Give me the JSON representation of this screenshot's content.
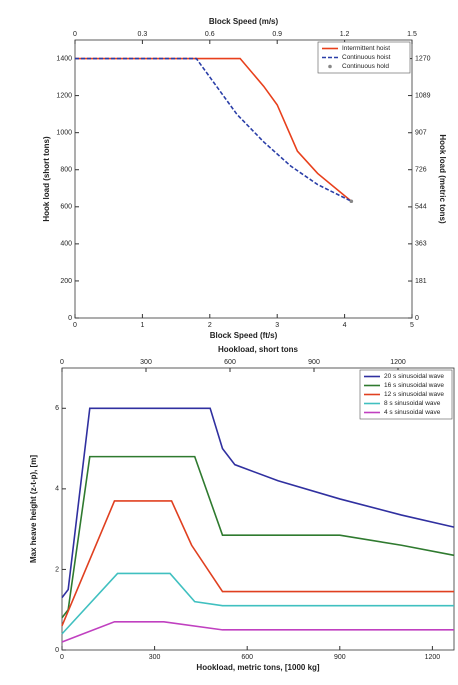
{
  "chart_data": [
    {
      "type": "line",
      "xlabel": "Block Speed (ft/s)",
      "x2label": "Block Speed (m/s)",
      "ylabel": "Hook load (short tons)",
      "y2label": "Hook load (metric tons)",
      "xlim": [
        0,
        5
      ],
      "xticks": [
        0,
        1,
        2,
        3,
        4,
        5
      ],
      "x2lim": [
        0,
        1.5
      ],
      "x2ticks": [
        0,
        0.3,
        0.6,
        0.9,
        1.2,
        1.5
      ],
      "ylim": [
        0,
        1500
      ],
      "yticks": [
        0,
        200,
        400,
        600,
        800,
        1000,
        1200,
        1400
      ],
      "y2lim": [
        0,
        1361
      ],
      "y2ticks": [
        0,
        181,
        363,
        544,
        726,
        907,
        1089,
        1270
      ],
      "legend": "upper right",
      "series": [
        {
          "name": "Intermittent hoist",
          "color": "#e8401c",
          "style": "solid",
          "x": [
            0,
            2.45,
            2.8,
            3.0,
            3.3,
            3.6,
            4.1
          ],
          "values": [
            1400,
            1400,
            1250,
            1150,
            900,
            780,
            630
          ]
        },
        {
          "name": "Continuous hoist",
          "color": "#2b3fa8",
          "style": "dashed",
          "x": [
            0,
            1.8,
            2.0,
            2.4,
            2.8,
            3.2,
            3.6,
            4.1
          ],
          "values": [
            1400,
            1400,
            1300,
            1100,
            950,
            820,
            720,
            630
          ]
        },
        {
          "name": "Continuous hold",
          "color": "#888888",
          "style": "marker",
          "x": [
            4.1
          ],
          "values": [
            630
          ]
        }
      ]
    },
    {
      "type": "line",
      "xlabel": "Hookload, metric tons, [1000 kg]",
      "x2label": "Hookload, short tons",
      "ylabel": "Max heave height (z-t-p), [m]",
      "xlim": [
        0,
        1270
      ],
      "xticks": [
        0,
        300,
        600,
        900,
        1200
      ],
      "x2lim": [
        0,
        1400
      ],
      "x2ticks": [
        0,
        300,
        600,
        900,
        1200
      ],
      "ylim": [
        0,
        7
      ],
      "yticks": [
        0,
        2,
        4,
        6
      ],
      "legend": "upper right",
      "series": [
        {
          "name": "20 s sinusoidal wave",
          "color": "#3030a0",
          "style": "solid",
          "x": [
            0,
            20,
            90,
            480,
            520,
            560,
            700,
            900,
            1100,
            1270
          ],
          "values": [
            1.3,
            1.5,
            6.0,
            6.0,
            5.0,
            4.6,
            4.2,
            3.75,
            3.35,
            3.05
          ]
        },
        {
          "name": "16 s sinusoidal wave",
          "color": "#2f7a2f",
          "style": "solid",
          "x": [
            0,
            20,
            90,
            430,
            520,
            900,
            1100,
            1270
          ],
          "values": [
            0.8,
            1.0,
            4.8,
            4.8,
            2.85,
            2.85,
            2.6,
            2.35
          ]
        },
        {
          "name": "12 s sinusoidal wave",
          "color": "#e04020",
          "style": "solid",
          "x": [
            0,
            170,
            355,
            420,
            520,
            1270
          ],
          "values": [
            0.6,
            3.7,
            3.7,
            2.6,
            1.45,
            1.45
          ]
        },
        {
          "name": "8 s sinusoidal wave",
          "color": "#40c0c0",
          "style": "solid",
          "x": [
            0,
            180,
            350,
            430,
            520,
            1270
          ],
          "values": [
            0.4,
            1.9,
            1.9,
            1.2,
            1.1,
            1.1
          ]
        },
        {
          "name": "4 s sinusoidal wave",
          "color": "#c040c0",
          "style": "solid",
          "x": [
            0,
            170,
            330,
            520,
            1270
          ],
          "values": [
            0.2,
            0.7,
            0.7,
            0.5,
            0.5
          ]
        }
      ]
    }
  ]
}
